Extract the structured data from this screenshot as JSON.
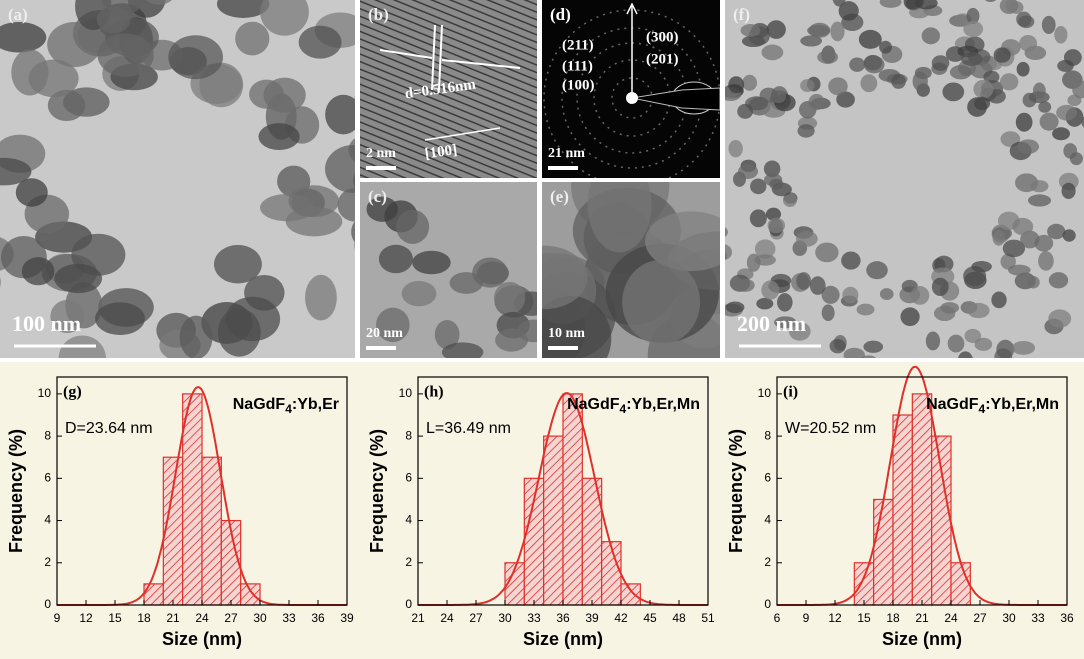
{
  "panels": [
    {
      "label": "(a)",
      "scale": "100 nm"
    },
    {
      "label": "(b)",
      "scale": "2 nm",
      "notes": [
        "d=0.516nm",
        "[100]"
      ]
    },
    {
      "label": "(c)",
      "scale": "20 nm"
    },
    {
      "label": "(d)",
      "scale": "21 nm",
      "notes": [
        "(211)",
        "(111)",
        "(100)",
        "(300)",
        "(201)"
      ]
    },
    {
      "label": "(e)",
      "scale": "10 nm"
    },
    {
      "label": "(f)",
      "scale": "200 nm"
    }
  ],
  "chart_data": [
    {
      "type": "histogram",
      "panel_label": "(g)",
      "formula": {
        "base": "NaGdF",
        "sub": "4",
        "rest": ":Yb,Er"
      },
      "annotation": "D=23.64 nm",
      "xlabel": "Size (nm)",
      "ylabel": "Frequency (%)",
      "color": "#e0302a",
      "fit": true,
      "bins": [
        18,
        20,
        22,
        24,
        26,
        28,
        30
      ],
      "values": [
        1,
        7,
        10,
        7,
        4,
        1
      ],
      "xlim": [
        9,
        39
      ],
      "xticks": [
        9,
        12,
        15,
        18,
        21,
        24,
        27,
        30,
        33,
        36,
        39
      ],
      "ylim": [
        0,
        10.8
      ],
      "yticks": [
        0,
        2,
        4,
        6,
        8,
        10
      ]
    },
    {
      "type": "histogram",
      "panel_label": "(h)",
      "formula": {
        "base": "NaGdF",
        "sub": "4",
        "rest": ":Yb,Er,Mn"
      },
      "annotation": "L=36.49 nm",
      "xlabel": "Size (nm)",
      "ylabel": "Frequency (%)",
      "color": "#e0302a",
      "fit": true,
      "bins": [
        30,
        32,
        34,
        36,
        38,
        40,
        42,
        44
      ],
      "values": [
        2,
        6,
        8,
        10,
        6,
        3,
        1
      ],
      "xlim": [
        21,
        51
      ],
      "xticks": [
        21,
        24,
        27,
        30,
        33,
        36,
        39,
        42,
        45,
        48,
        51
      ],
      "ylim": [
        0,
        10.8
      ],
      "yticks": [
        0,
        2,
        4,
        6,
        8,
        10
      ]
    },
    {
      "type": "histogram",
      "panel_label": "(i)",
      "formula": {
        "base": "NaGdF",
        "sub": "4",
        "rest": ":Yb,Er,Mn"
      },
      "annotation": "W=20.52 nm",
      "xlabel": "Size (nm)",
      "ylabel": "Frequency (%)",
      "color": "#e0302a",
      "fit": true,
      "bins": [
        14,
        16,
        18,
        20,
        22,
        24,
        26
      ],
      "values": [
        2,
        5,
        9,
        10,
        8,
        2
      ],
      "xlim": [
        6,
        36
      ],
      "xticks": [
        6,
        9,
        12,
        15,
        18,
        21,
        24,
        27,
        30,
        33,
        36
      ],
      "ylim": [
        0,
        10.8
      ],
      "yticks": [
        0,
        2,
        4,
        6,
        8,
        10
      ]
    }
  ]
}
